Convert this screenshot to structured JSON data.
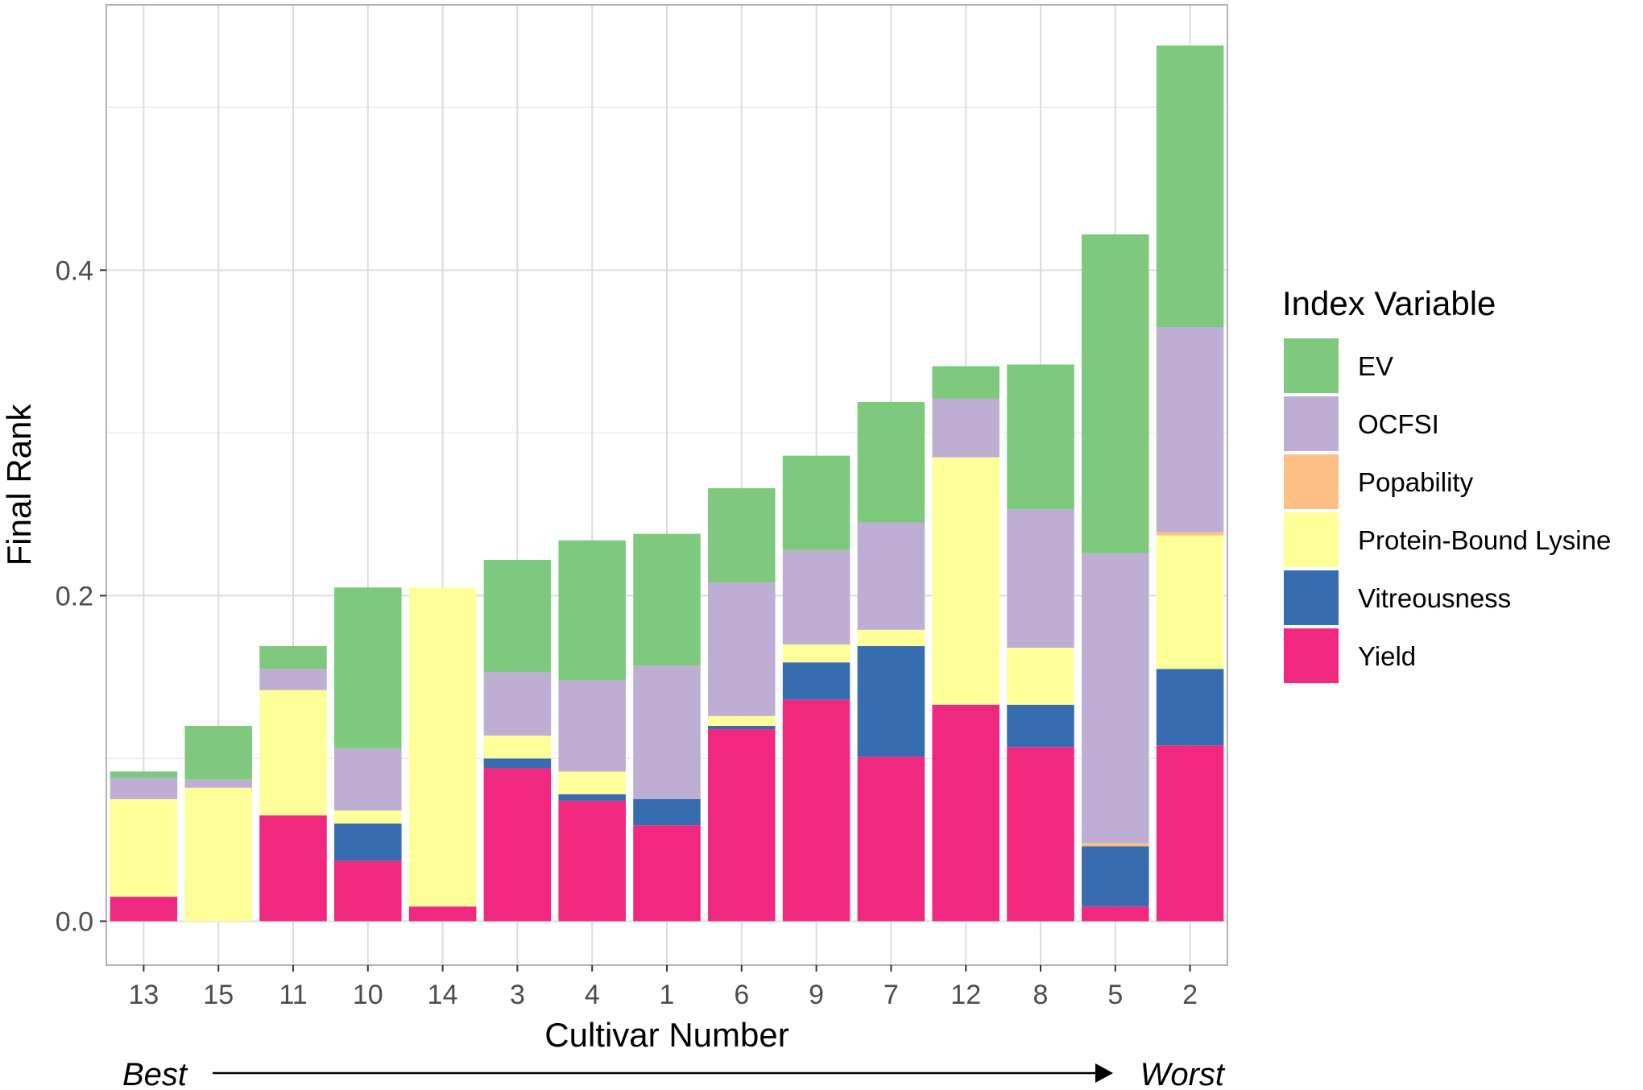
{
  "chart_data": {
    "type": "bar",
    "stacked": true,
    "title": "",
    "xlabel": "Cultivar Number",
    "ylabel": "Final Rank",
    "ylim": [
      -0.027,
      0.563
    ],
    "yticks": [
      0.0,
      0.2,
      0.4
    ],
    "ytick_labels": [
      "0.0",
      "0.2",
      "0.4"
    ],
    "grid": true,
    "categories": [
      "13",
      "15",
      "11",
      "10",
      "14",
      "3",
      "4",
      "1",
      "6",
      "9",
      "7",
      "12",
      "8",
      "5",
      "2"
    ],
    "series": [
      {
        "name": "Yield",
        "color": "#F0287F",
        "values": [
          0.015,
          0.0,
          0.065,
          0.037,
          0.009,
          0.094,
          0.074,
          0.059,
          0.118,
          0.136,
          0.101,
          0.133,
          0.107,
          0.009,
          0.108
        ]
      },
      {
        "name": "Vitreousness",
        "color": "#386CB0",
        "values": [
          0.0,
          0.0,
          0.0,
          0.023,
          0.0,
          0.006,
          0.004,
          0.016,
          0.002,
          0.023,
          0.068,
          0.0,
          0.026,
          0.037,
          0.047
        ]
      },
      {
        "name": "Protein-Bound Lysine",
        "color": "#FFFF99",
        "values": [
          0.06,
          0.082,
          0.077,
          0.008,
          0.196,
          0.014,
          0.014,
          0.0,
          0.006,
          0.011,
          0.01,
          0.152,
          0.035,
          0.0,
          0.082
        ]
      },
      {
        "name": "Popability",
        "color": "#FDC086",
        "values": [
          0.0,
          0.0,
          0.0,
          0.0,
          0.0,
          0.0,
          0.0,
          0.0,
          0.0,
          0.0,
          0.0,
          0.0,
          0.0,
          0.002,
          0.002
        ]
      },
      {
        "name": "OCFSI",
        "color": "#BEAED4",
        "values": [
          0.013,
          0.005,
          0.013,
          0.038,
          0.0,
          0.039,
          0.056,
          0.082,
          0.082,
          0.058,
          0.066,
          0.036,
          0.085,
          0.178,
          0.126
        ]
      },
      {
        "name": "EV",
        "color": "#7FC97F",
        "values": [
          0.004,
          0.033,
          0.014,
          0.099,
          0.0,
          0.069,
          0.086,
          0.081,
          0.058,
          0.058,
          0.074,
          0.02,
          0.089,
          0.196,
          0.173
        ]
      }
    ],
    "legend": {
      "title": "Index Variable",
      "position": "right",
      "entries": [
        "EV",
        "OCFSI",
        "Popability",
        "Protein-Bound Lysine",
        "Vitreousness",
        "Yield"
      ]
    },
    "annotations": {
      "left": "Best",
      "right": "Worst"
    }
  }
}
